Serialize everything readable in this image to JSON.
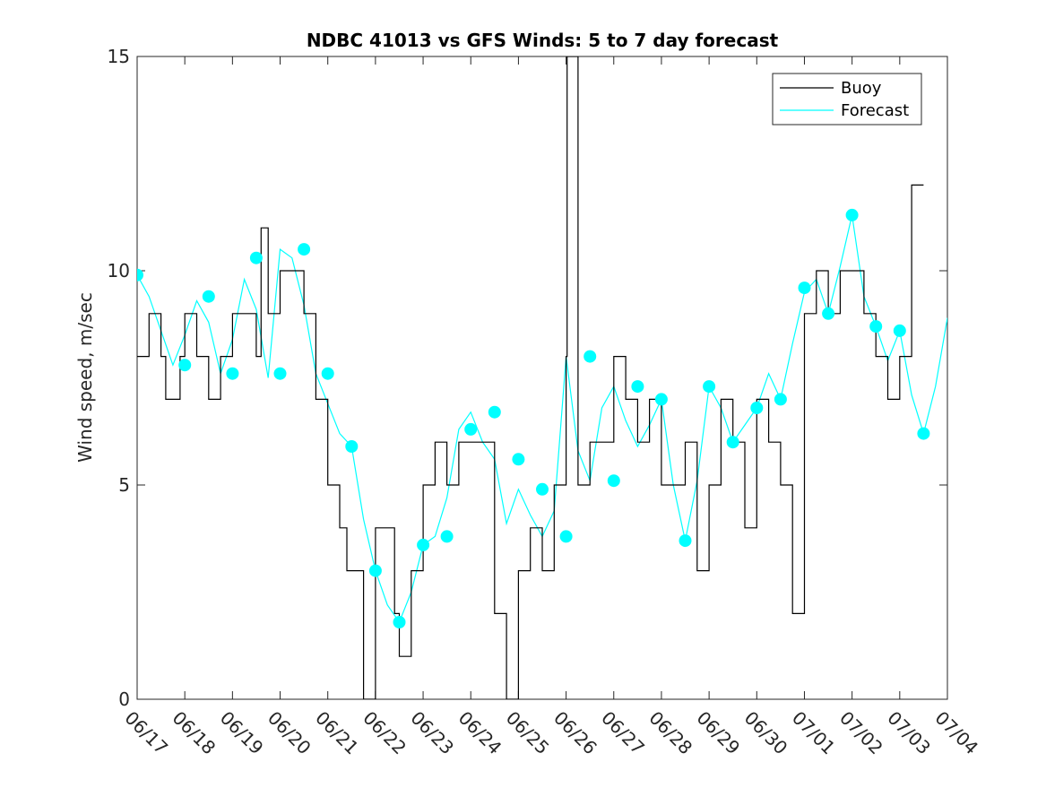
{
  "chart_data": {
    "type": "line",
    "title": "NDBC 41013 vs GFS Winds: 5 to 7 day forecast",
    "xlabel": "",
    "ylabel": "Wind speed, m/sec",
    "xlim": [
      0,
      17
    ],
    "ylim": [
      0,
      15
    ],
    "yticks": [
      0,
      5,
      10,
      15
    ],
    "xtick_labels": [
      "06/17",
      "06/18",
      "06/19",
      "06/20",
      "06/21",
      "06/22",
      "06/23",
      "06/24",
      "06/25",
      "06/26",
      "06/27",
      "06/28",
      "06/29",
      "06/30",
      "07/01",
      "07/02",
      "07/03",
      "07/04"
    ],
    "grid": false,
    "legend": {
      "position": "top-right",
      "entries": [
        "Buoy",
        "Forecast"
      ]
    },
    "colors": {
      "buoy": "#000000",
      "forecast": "#00ffff",
      "axes": "#262626"
    },
    "series": [
      {
        "name": "Buoy",
        "x_unit": "days since 06/17",
        "x": [
          0.0,
          0.25,
          0.5,
          0.6,
          0.75,
          0.9,
          1.0,
          1.25,
          1.5,
          1.75,
          2.0,
          2.25,
          2.5,
          2.6,
          2.75,
          3.0,
          3.25,
          3.5,
          3.75,
          4.0,
          4.25,
          4.4,
          4.5,
          4.75,
          5.0,
          5.25,
          5.4,
          5.5,
          5.75,
          6.0,
          6.25,
          6.5,
          6.75,
          7.0,
          7.25,
          7.5,
          7.75,
          8.0,
          8.25,
          8.5,
          8.75,
          9.0,
          9.02,
          9.25,
          9.5,
          9.75,
          10.0,
          10.25,
          10.5,
          10.75,
          11.0,
          11.25,
          11.5,
          11.75,
          12.0,
          12.25,
          12.5,
          12.75,
          13.0,
          13.25,
          13.5,
          13.75,
          14.0,
          14.25,
          14.5,
          14.75,
          15.0,
          15.25,
          15.5,
          15.75,
          16.0,
          16.25
        ],
        "y": [
          8,
          9,
          8,
          7,
          7,
          8,
          9,
          8,
          7,
          8,
          9,
          9,
          8,
          11,
          9,
          10,
          10,
          9,
          7,
          5,
          4,
          3,
          3,
          0,
          4,
          4,
          2,
          1,
          3,
          5,
          6,
          5,
          6,
          6,
          6,
          2,
          0,
          3,
          4,
          3,
          5,
          8,
          15,
          5,
          6,
          6,
          8,
          7,
          6,
          7,
          5,
          5,
          6,
          3,
          5,
          7,
          6,
          4,
          7,
          6,
          5,
          2,
          9,
          10,
          9,
          10,
          10,
          9,
          8,
          7,
          8,
          12
        ]
      },
      {
        "name": "Forecast",
        "x_unit": "days since 06/17",
        "x": [
          0.0,
          0.25,
          0.5,
          0.75,
          1.0,
          1.25,
          1.5,
          1.75,
          2.0,
          2.25,
          2.5,
          2.75,
          3.0,
          3.25,
          3.5,
          3.75,
          4.0,
          4.25,
          4.5,
          4.75,
          5.0,
          5.25,
          5.5,
          5.75,
          6.0,
          6.25,
          6.5,
          6.75,
          7.0,
          7.25,
          7.5,
          7.75,
          8.0,
          8.25,
          8.5,
          8.75,
          9.0,
          9.25,
          9.5,
          9.75,
          10.0,
          10.25,
          10.5,
          10.75,
          11.0,
          11.25,
          11.5,
          11.75,
          12.0,
          12.25,
          12.5,
          12.75,
          13.0,
          13.25,
          13.5,
          13.75,
          14.0,
          14.25,
          14.5,
          14.75,
          15.0,
          15.25,
          15.5,
          15.75,
          16.0,
          16.25,
          16.5,
          16.75,
          17.0
        ],
        "y": [
          9.9,
          9.4,
          8.6,
          7.8,
          8.5,
          9.3,
          8.8,
          7.6,
          8.4,
          9.8,
          9.1,
          7.5,
          10.5,
          10.3,
          9.2,
          7.6,
          6.9,
          6.2,
          5.9,
          4.2,
          3.0,
          2.2,
          1.8,
          2.5,
          3.6,
          3.8,
          4.7,
          6.3,
          6.7,
          6.0,
          5.6,
          4.1,
          4.9,
          4.3,
          3.8,
          4.4,
          8.0,
          5.8,
          5.1,
          6.8,
          7.3,
          6.5,
          5.9,
          6.4,
          7.0,
          5.0,
          3.7,
          5.1,
          7.3,
          6.8,
          6.0,
          6.4,
          6.8,
          7.6,
          7.0,
          8.3,
          9.5,
          9.8,
          9.0,
          10.1,
          11.3,
          9.4,
          8.7,
          7.9,
          8.6,
          7.1,
          6.2,
          7.3,
          8.9
        ]
      }
    ],
    "markers": {
      "name": "Forecast",
      "x": [
        0.0,
        1.0,
        1.5,
        2.0,
        2.5,
        3.0,
        3.5,
        4.0,
        4.5,
        5.0,
        5.5,
        6.0,
        6.5,
        7.0,
        7.5,
        8.0,
        8.5,
        9.0,
        9.5,
        10.0,
        10.5,
        11.0,
        11.5,
        12.0,
        12.5,
        13.0,
        13.5,
        14.0,
        14.5,
        15.0,
        15.5,
        16.0,
        16.5
      ],
      "y": [
        9.9,
        7.8,
        9.4,
        7.6,
        10.3,
        7.6,
        10.5,
        7.6,
        5.9,
        3.0,
        1.8,
        3.6,
        3.8,
        6.3,
        6.7,
        5.6,
        4.9,
        3.8,
        8.0,
        5.1,
        7.3,
        7.0,
        3.7,
        7.3,
        6.0,
        6.8,
        7.0,
        9.6,
        9.0,
        11.3,
        8.7,
        8.6,
        6.2
      ]
    }
  }
}
